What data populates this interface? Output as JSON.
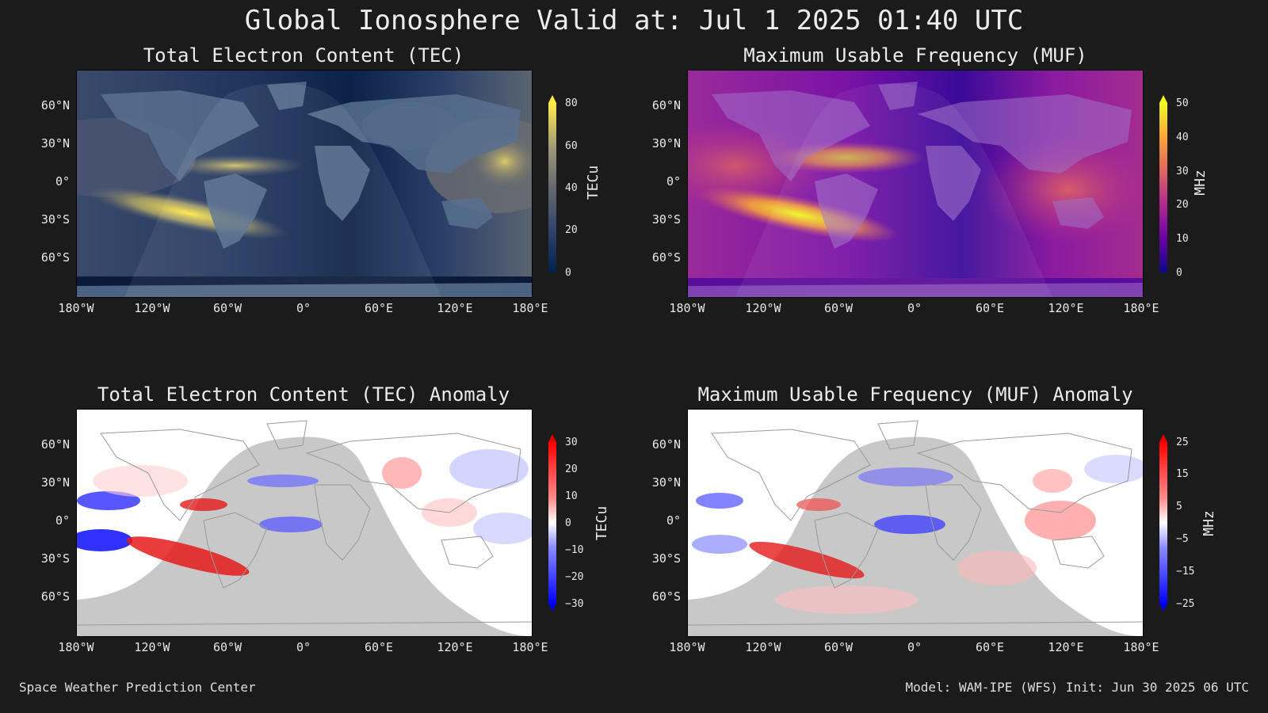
{
  "title": "Global Ionosphere Valid at: Jul 1 2025 01:40 UTC",
  "footer": {
    "left": "Space Weather Prediction Center",
    "right": "Model: WAM-IPE (WFS) Init: Jun 30 2025 06 UTC"
  },
  "lat_labels": [
    "60°N",
    "30°N",
    "0°",
    "30°S",
    "60°S"
  ],
  "lon_labels": [
    "180°W",
    "120°W",
    "60°W",
    "0°",
    "60°E",
    "120°E",
    "180°E"
  ],
  "panels": {
    "tec": {
      "title": "Total Electron Content (TEC)",
      "unit": "TECu",
      "ticks": [
        "80",
        "60",
        "40",
        "20",
        "0"
      ]
    },
    "muf": {
      "title": "Maximum Usable Frequency (MUF)",
      "unit": "MHz",
      "ticks": [
        "50",
        "40",
        "30",
        "20",
        "10",
        "0"
      ]
    },
    "tec_anom": {
      "title": "Total Electron Content (TEC) Anomaly",
      "unit": "TECu",
      "ticks": [
        "30",
        "20",
        "10",
        "0",
        "−10",
        "−20",
        "−30"
      ]
    },
    "muf_anom": {
      "title": "Maximum Usable Frequency (MUF) Anomaly",
      "unit": "MHz",
      "ticks": [
        "25",
        "15",
        "5",
        "−5",
        "−15",
        "−25"
      ]
    }
  },
  "colors": {
    "background": "#1b1b1b",
    "tec_scale": [
      "#00204d",
      "#31446b",
      "#666870",
      "#958f78",
      "#cbba69",
      "#ffea46"
    ],
    "muf_scale": [
      "#0d0887",
      "#6a00a8",
      "#b12a90",
      "#e16462",
      "#fca636",
      "#f0f921"
    ],
    "anomaly_scale": [
      "#0000ff",
      "#8c8cff",
      "#ffffff",
      "#ff8c8c",
      "#ff0000"
    ]
  }
}
